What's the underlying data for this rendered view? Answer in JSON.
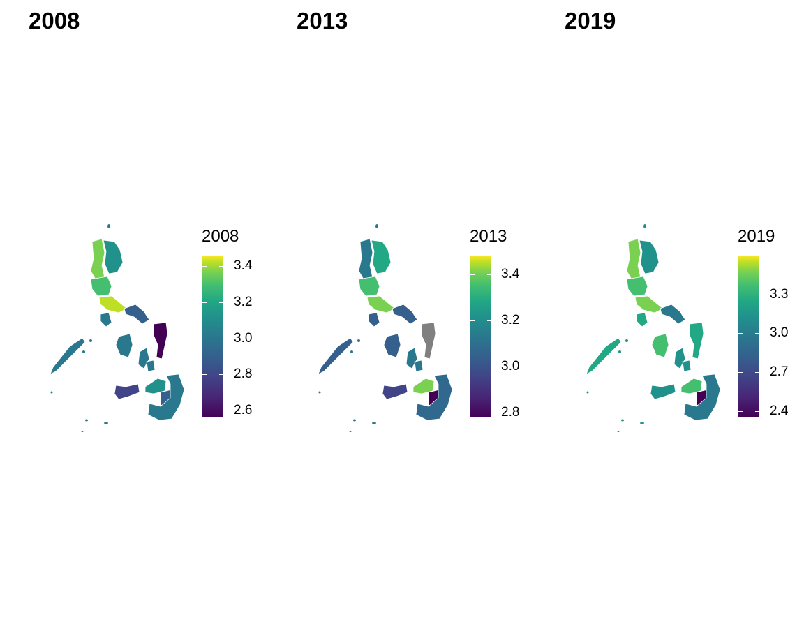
{
  "panels": [
    {
      "title": "2008",
      "legend_title": "2008",
      "scale": {
        "min": 2.56,
        "max": 3.46
      },
      "ticks": [
        {
          "value": 2.6,
          "label": "2.6"
        },
        {
          "value": 2.8,
          "label": "2.8"
        },
        {
          "value": 3.0,
          "label": "3.0"
        },
        {
          "value": 3.2,
          "label": "3.2"
        },
        {
          "value": 3.4,
          "label": "3.4"
        }
      ],
      "region_colors": [
        "#7ad151",
        "#21918c",
        "#44bf70",
        "#bddf26",
        "#2a788e",
        "#355f8d",
        "#440154",
        "#2a788e",
        "#414487",
        "#2a788e",
        "#21918c",
        "#355f8d",
        "#2a788e"
      ]
    },
    {
      "title": "2013",
      "legend_title": "2013",
      "scale": {
        "min": 2.78,
        "max": 3.48
      },
      "ticks": [
        {
          "value": 2.8,
          "label": "2.8"
        },
        {
          "value": 3.0,
          "label": "3.0"
        },
        {
          "value": 3.2,
          "label": "3.2"
        },
        {
          "value": 3.4,
          "label": "3.4"
        }
      ],
      "region_colors": [
        "#2a788e",
        "#22a884",
        "#44bf70",
        "#7ad151",
        "#355f8d",
        "#355f8d",
        "#808080",
        "#355f8d",
        "#414487",
        "#2a788e",
        "#7ad151",
        "#440154",
        "#31688e"
      ]
    },
    {
      "title": "2019",
      "legend_title": "2019",
      "scale": {
        "min": 2.35,
        "max": 3.6
      },
      "ticks": [
        {
          "value": 2.4,
          "label": "2.4"
        },
        {
          "value": 2.7,
          "label": "2.7"
        },
        {
          "value": 3.0,
          "label": "3.0"
        },
        {
          "value": 3.3,
          "label": "3.3"
        }
      ],
      "region_colors": [
        "#7ad151",
        "#21918c",
        "#44bf70",
        "#7ad151",
        "#22a884",
        "#2a788e",
        "#22a884",
        "#44bf70",
        "#21918c",
        "#21918c",
        "#44bf70",
        "#440154",
        "#2a788e"
      ]
    }
  ]
}
